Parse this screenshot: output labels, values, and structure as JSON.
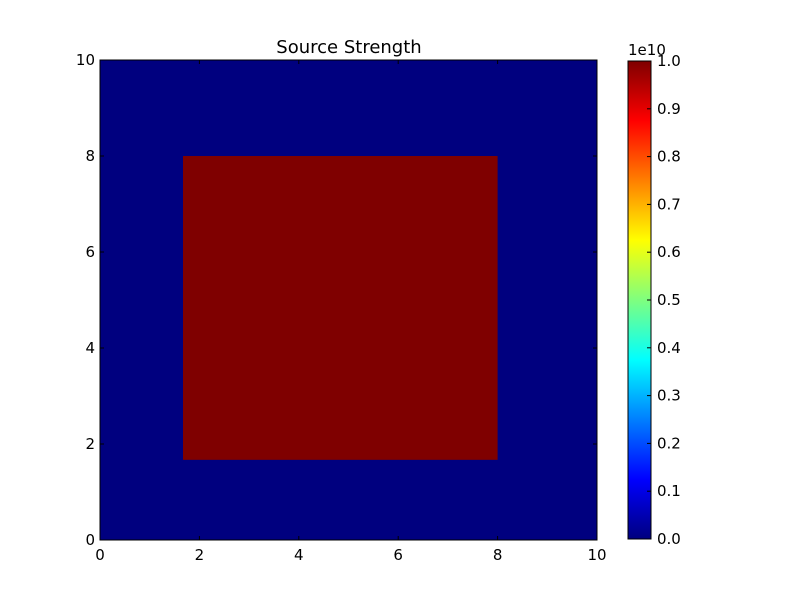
{
  "chart_data": {
    "type": "heatmap",
    "title": "Source Strength",
    "xlabel": "",
    "ylabel": "",
    "xlim": [
      0,
      10
    ],
    "ylim": [
      0,
      10
    ],
    "x_ticks": [
      0,
      2,
      4,
      6,
      8,
      10
    ],
    "y_ticks": [
      0,
      2,
      4,
      6,
      8,
      10
    ],
    "x_tick_labels": [
      "0",
      "2",
      "4",
      "6",
      "8",
      "10"
    ],
    "y_tick_labels": [
      "0",
      "2",
      "4",
      "6",
      "8",
      "10"
    ],
    "background_value": 0,
    "regions": [
      {
        "x": [
          1.67,
          8.0
        ],
        "y": [
          1.67,
          8.0
        ],
        "value": 10000000000
      }
    ],
    "colormap": "jet",
    "colorbar": {
      "range": [
        0,
        1.0
      ],
      "offset_label": "1e10",
      "ticks": [
        0.0,
        0.1,
        0.2,
        0.3,
        0.4,
        0.5,
        0.6,
        0.7,
        0.8,
        0.9,
        1.0
      ],
      "tick_labels": [
        "0.0",
        "0.1",
        "0.2",
        "0.3",
        "0.4",
        "0.5",
        "0.6",
        "0.7",
        "0.8",
        "0.9",
        "1.0"
      ],
      "colors": [
        "#00007f",
        "#0000ff",
        "#007fff",
        "#00ffff",
        "#7fff7f",
        "#ffff00",
        "#ff7f00",
        "#ff0000",
        "#7f0000"
      ]
    },
    "colors": {
      "low": "#00007f",
      "high": "#7f0000"
    },
    "grid": false
  }
}
